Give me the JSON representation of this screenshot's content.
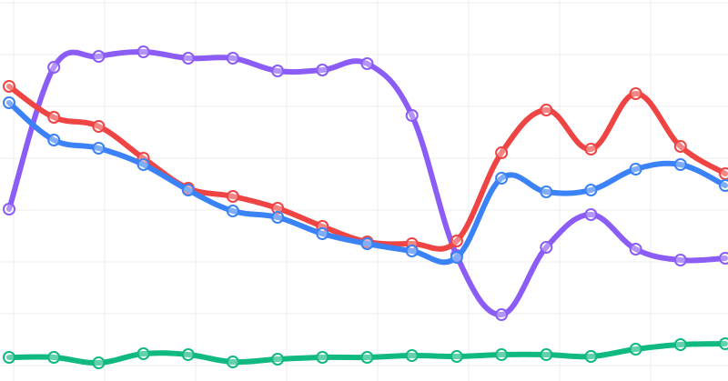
{
  "chart_data": {
    "type": "line",
    "grid": true,
    "legend": "none",
    "xlim": [
      0,
      16
    ],
    "ylim": [
      0,
      419
    ],
    "x": [
      0,
      1,
      2,
      3,
      4,
      5,
      6,
      7,
      8,
      9,
      10,
      11,
      12,
      13,
      14,
      15,
      16
    ],
    "series": [
      {
        "color": "#8b5cf6",
        "values": [
          189,
          345,
          357,
          362,
          355,
          355,
          341,
          342,
          349,
          292,
          138,
          73,
          147,
          183,
          145,
          133,
          135
        ]
      },
      {
        "color": "#ef4444",
        "values": [
          324,
          290,
          280,
          245,
          212,
          203,
          190,
          170,
          153,
          151,
          154,
          251,
          298,
          255,
          316,
          258,
          228
        ]
      },
      {
        "color": "#3b82f6",
        "values": [
          306,
          265,
          256,
          238,
          210,
          187,
          180,
          162,
          151,
          143,
          136,
          223,
          208,
          210,
          233,
          238,
          215
        ]
      },
      {
        "color": "#10b981",
        "values": [
          26,
          26,
          20,
          30,
          29,
          21,
          24,
          26,
          26,
          28,
          27,
          29,
          29,
          27,
          35,
          40,
          41
        ]
      }
    ]
  }
}
